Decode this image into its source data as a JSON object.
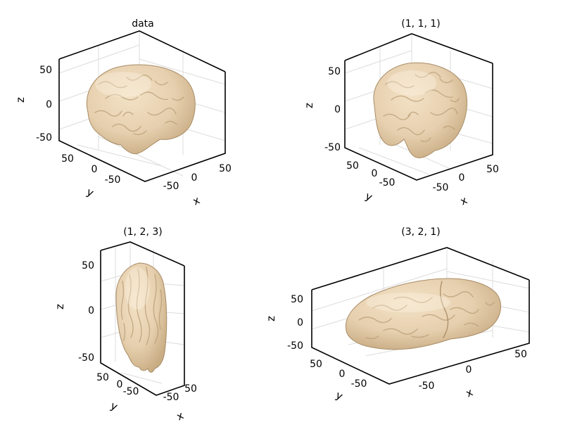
{
  "figure": {
    "colors": {
      "surface": "#e6cfae",
      "surface_shade": "#cdb28a",
      "box": "#000000",
      "grid": "#dcdcdc"
    }
  },
  "chart_data": [
    {
      "type": "3d-surface",
      "title": "data",
      "scale": [
        1,
        1,
        1
      ],
      "xlabel": "x",
      "ylabel": "y",
      "zlabel": "z",
      "xticks": [
        "-50",
        "0",
        "50"
      ],
      "yticks": [
        "50",
        "0",
        "-50"
      ],
      "zticks": [
        "50",
        "0",
        "-50"
      ],
      "grid": true
    },
    {
      "type": "3d-surface",
      "title": "(1, 1, 1)",
      "scale": [
        1,
        1,
        1
      ],
      "xlabel": "x",
      "ylabel": "y",
      "zlabel": "z",
      "xticks": [
        "-50",
        "0",
        "50"
      ],
      "yticks": [
        "50",
        "0",
        "-50"
      ],
      "zticks": [
        "50",
        "0",
        "-50"
      ],
      "grid": true
    },
    {
      "type": "3d-surface",
      "title": "(1, 2, 3)",
      "scale": [
        1,
        2,
        3
      ],
      "xlabel": "x",
      "ylabel": "y",
      "zlabel": "z",
      "xticks": [
        "-50",
        "50"
      ],
      "yticks": [
        "50",
        "0",
        "-50"
      ],
      "zticks": [
        "50",
        "0",
        "-50"
      ],
      "grid": true
    },
    {
      "type": "3d-surface",
      "title": "(3, 2, 1)",
      "scale": [
        3,
        2,
        1
      ],
      "xlabel": "x",
      "ylabel": "y",
      "zlabel": "z",
      "xticks": [
        "-50",
        "0",
        "50"
      ],
      "yticks": [
        "50",
        "0",
        "-50"
      ],
      "zticks": [
        "50",
        "0",
        "-50"
      ],
      "grid": true
    }
  ]
}
